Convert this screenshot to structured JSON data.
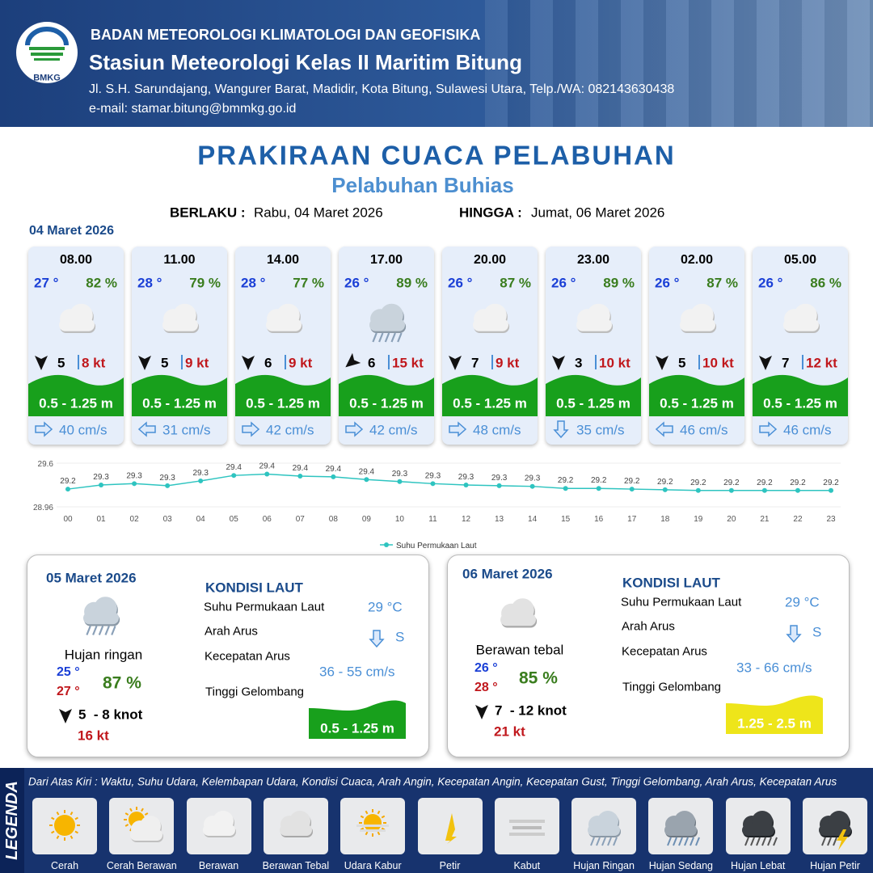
{
  "header": {
    "logo": "BMKG",
    "agency": "BADAN METEOROLOGI KLIMATOLOGI DAN GEOFISIKA",
    "station": "Stasiun Meteorologi Kelas II Maritim Bitung",
    "address": "Jl. S.H. Sarundajang, Wangurer Barat, Madidir, Kota Bitung, Sulawesi Utara, Telp./WA: 082143630438",
    "email": "e-mail: stamar.bitung@bmmkg.go.id"
  },
  "title": "PRAKIRAAN CUACA PELABUHAN",
  "subtitle": "Pelabuhan Buhias",
  "validity": {
    "from_label": "BERLAKU :",
    "from": "Rabu, 04 Maret 2026",
    "to_label": "HINGGA :",
    "to": "Jumat, 06 Maret 2026"
  },
  "day1": {
    "date": "04 Maret 2026",
    "slots": [
      {
        "time": "08.00",
        "temp": "27 °",
        "humidity": "82 %",
        "wind": "5",
        "gust": "8 kt",
        "wave": "0.5 - 1.25 m",
        "current": "40 cm/s"
      },
      {
        "time": "11.00",
        "temp": "28 °",
        "humidity": "79 %",
        "wind": "5",
        "gust": "9 kt",
        "wave": "0.5 - 1.25 m",
        "current": "31 cm/s"
      },
      {
        "time": "14.00",
        "temp": "28 °",
        "humidity": "77 %",
        "wind": "6",
        "gust": "9 kt",
        "wave": "0.5 - 1.25 m",
        "current": "42 cm/s"
      },
      {
        "time": "17.00",
        "temp": "26 °",
        "humidity": "89 %",
        "wind": "6",
        "gust": "15 kt",
        "wave": "0.5 - 1.25 m",
        "current": "42 cm/s"
      },
      {
        "time": "20.00",
        "temp": "26 °",
        "humidity": "87 %",
        "wind": "7",
        "gust": "9 kt",
        "wave": "0.5 - 1.25 m",
        "current": "48 cm/s"
      },
      {
        "time": "23.00",
        "temp": "26 °",
        "humidity": "89 %",
        "wind": "3",
        "gust": "10 kt",
        "wave": "0.5 - 1.25 m",
        "current": "35 cm/s"
      },
      {
        "time": "02.00",
        "temp": "26 °",
        "humidity": "87 %",
        "wind": "5",
        "gust": "10 kt",
        "wave": "0.5 - 1.25 m",
        "current": "46 cm/s"
      },
      {
        "time": "05.00",
        "temp": "26 °",
        "humidity": "86 %",
        "wind": "7",
        "gust": "12 kt",
        "wave": "0.5 - 1.25 m",
        "current": "46 cm/s"
      }
    ]
  },
  "chart_data": {
    "type": "line",
    "categories": [
      "00",
      "01",
      "02",
      "03",
      "04",
      "05",
      "06",
      "07",
      "08",
      "09",
      "10",
      "11",
      "12",
      "13",
      "14",
      "15",
      "16",
      "17",
      "18",
      "19",
      "20",
      "21",
      "22",
      "23"
    ],
    "series": [
      {
        "name": "Suhu Permukaan Laut",
        "color": "#2ec4c0",
        "values": [
          29.22,
          29.28,
          29.3,
          29.27,
          29.34,
          29.42,
          29.44,
          29.41,
          29.4,
          29.36,
          29.33,
          29.3,
          29.28,
          29.27,
          29.26,
          29.23,
          29.23,
          29.22,
          29.21,
          29.2,
          29.2,
          29.2,
          29.2,
          29.2
        ],
        "value_labels": [
          "29.2",
          "29.3",
          "29.3",
          "29.3",
          "29.3",
          "29.4",
          "29.4",
          "29.4",
          "29.4",
          "29.4",
          "29.3",
          "29.3",
          "29.3",
          "29.3",
          "29.3",
          "29.2",
          "29.2",
          "29.2",
          "29.2",
          "29.2",
          "29.2",
          "29.2",
          "29.2",
          "29.2"
        ]
      }
    ],
    "ylim": [
      28.96,
      29.6
    ],
    "yticks": [
      28.96,
      29.6
    ],
    "legend": "bottom"
  },
  "day2": {
    "date": "05 Maret 2026",
    "weather": "Hujan ringan",
    "temp_min": "25 °",
    "temp_max": "27 °",
    "humidity": "87 %",
    "wind": "5  - 8 knot",
    "gust": "16 kt",
    "sea": {
      "title": "KONDISI LAUT",
      "sst_label": "Suhu Permukaan Laut",
      "sst": "29 °C",
      "dir_label": "Arah Arus",
      "dir": "S",
      "speed_label": "Kecepatan Arus",
      "speed": "36 - 55 cm/s",
      "wave_label": "Tinggi Gelombang",
      "wave": "0.5 - 1.25 m"
    }
  },
  "day3": {
    "date": "06 Maret 2026",
    "weather": "Berawan tebal",
    "temp_min": "26 °",
    "temp_max": "28 °",
    "humidity": "85 %",
    "wind": "7  - 12 knot",
    "gust": "21 kt",
    "sea": {
      "title": "KONDISI LAUT",
      "sst_label": "Suhu Permukaan Laut",
      "sst": "29 °C",
      "dir_label": "Arah Arus",
      "dir": "S",
      "speed_label": "Kecepatan Arus",
      "speed": "33 - 66 cm/s",
      "wave_label": "Tinggi Gelombang",
      "wave": "1.25 - 2.5 m"
    }
  },
  "legend": {
    "title": "LEGENDA",
    "description": "Dari Atas Kiri : Waktu, Suhu Udara, Kelembapan Udara, Kondisi Cuaca, Arah Angin, Kecepatan Angin, Kecepatan Gust, Tinggi Gelombang, Arah Arus, Kecepatan Arus",
    "items": [
      "Cerah",
      "Cerah Berawan",
      "Berawan",
      "Berawan Tebal",
      "Udara Kabur",
      "Petir",
      "Kabut",
      "Hujan Ringan",
      "Hujan Sedang",
      "Hujan Lebat",
      "Hujan Petir"
    ]
  }
}
